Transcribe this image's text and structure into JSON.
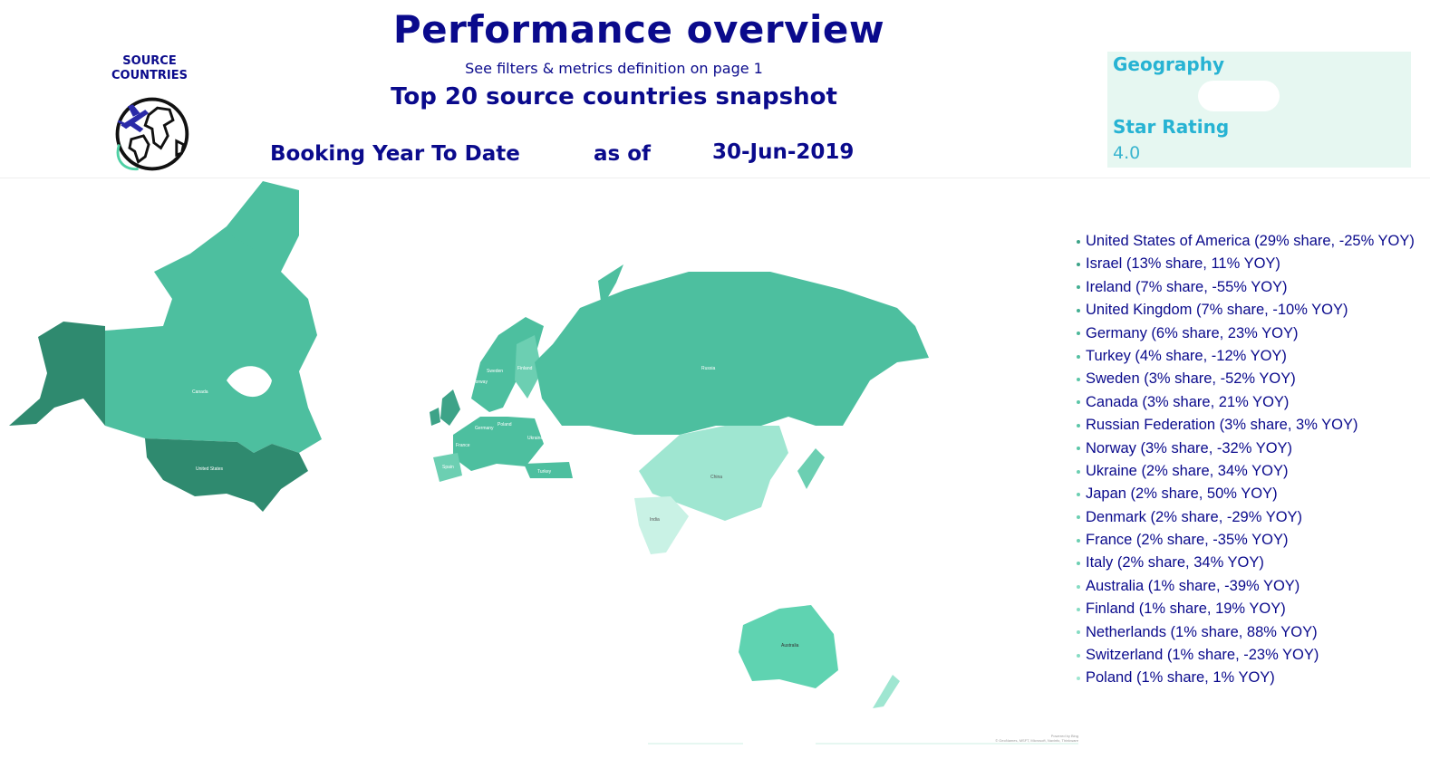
{
  "header": {
    "title": "Performance overview",
    "subtitle": "See filters & metrics definition on page 1",
    "snapshot_title": "Top 20 source countries snapshot",
    "period_label": "Booking Year To Date",
    "as_of_label": "as of",
    "as_of_date": "30-Jun-2019",
    "title_color": "#0a0a8c"
  },
  "badge": {
    "label": "SOURCE COUNTRIES",
    "icon": "airplane-globe-icon"
  },
  "filters": {
    "geography_label": "Geography",
    "geography_value": "",
    "star_rating_label": "Star Rating",
    "star_rating_value": "4.0",
    "background": "#e6f7f1",
    "label_color": "#27b3d3"
  },
  "map": {
    "type": "choropleth",
    "palette": [
      "#2f8a6f",
      "#3da388",
      "#4dbf9f",
      "#5fd3b1",
      "#9fe6d1",
      "#c9f2e5"
    ],
    "region_labels": [
      "Canada",
      "United States",
      "Russia",
      "China",
      "India",
      "Australia",
      "Norway",
      "Sweden",
      "Finland",
      "Poland",
      "Germany",
      "France",
      "Spain",
      "Ukraine",
      "Turkey"
    ],
    "credit": [
      "Powered by Bing",
      "© GeoNames, MSFT, Microsoft, Navinfo, Thinkware"
    ]
  },
  "legend": [
    {
      "text": "United States of America (29% share, -25% YOY)",
      "color": "#3da388"
    },
    {
      "text": "Israel (13% share, 11% YOY)",
      "color": "#3da388"
    },
    {
      "text": "Ireland (7% share, -55% YOY)",
      "color": "#45af93"
    },
    {
      "text": "United Kingdom (7% share, -10% YOY)",
      "color": "#45af93"
    },
    {
      "text": "Germany (6% share, 23% YOY)",
      "color": "#4db89a"
    },
    {
      "text": "Turkey (4% share, -12% YOY)",
      "color": "#55c0a2"
    },
    {
      "text": "Sweden (3% share, -52% YOY)",
      "color": "#5cc6a8"
    },
    {
      "text": "Canada (3% share, 21% YOY)",
      "color": "#5cc6a8"
    },
    {
      "text": "Russian Federation (3% share, 3% YOY)",
      "color": "#5cc6a8"
    },
    {
      "text": "Norway (3% share, -32% YOY)",
      "color": "#5cc6a8"
    },
    {
      "text": "Ukraine (2% share, 34% YOY)",
      "color": "#6ccfb2"
    },
    {
      "text": "Japan (2% share, 50% YOY)",
      "color": "#6ccfb2"
    },
    {
      "text": "Denmark (2% share, -29% YOY)",
      "color": "#6ccfb2"
    },
    {
      "text": "France (2% share, -35% YOY)",
      "color": "#6ccfb2"
    },
    {
      "text": "Italy (2% share, 34% YOY)",
      "color": "#6ccfb2"
    },
    {
      "text": "Australia (1% share, -39% YOY)",
      "color": "#86dcc3"
    },
    {
      "text": "Finland (1% share, 19% YOY)",
      "color": "#86dcc3"
    },
    {
      "text": "Netherlands (1% share, 88% YOY)",
      "color": "#86dcc3"
    },
    {
      "text": "Switzerland (1% share, -23% YOY)",
      "color": "#86dcc3"
    },
    {
      "text": "Poland (1% share, 1% YOY)",
      "color": "#9fe6d1"
    }
  ]
}
